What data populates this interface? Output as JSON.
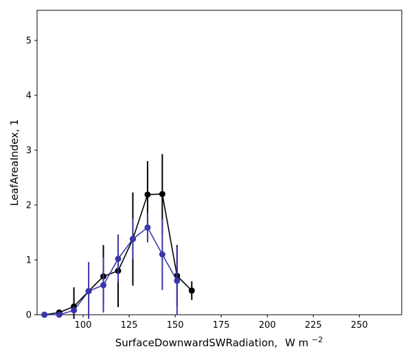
{
  "chart_data": {
    "type": "line",
    "xlabel": "SurfaceDownwardSWRadiation,",
    "xlabel_unit": "W m",
    "xlabel_unit_exp": "−2",
    "ylabel": "LeafAreaIndex,  1",
    "xlim": [
      75,
      273
    ],
    "ylim": [
      0,
      5.55
    ],
    "xticks": [
      100,
      125,
      150,
      175,
      200,
      225,
      250
    ],
    "yticks": [
      0,
      1,
      2,
      3,
      4,
      5
    ],
    "grid": false,
    "legend": "none",
    "series": [
      {
        "color": "#000000",
        "points": [
          {
            "x": 79,
            "y": 0.0,
            "err": 0.0
          },
          {
            "x": 87,
            "y": 0.04,
            "err": 0.03
          },
          {
            "x": 95,
            "y": 0.15,
            "err": 0.35
          },
          {
            "x": 103,
            "y": 0.43,
            "err": 0.0
          },
          {
            "x": 111,
            "y": 0.7,
            "err": 0.57
          },
          {
            "x": 119,
            "y": 0.8,
            "err": 0.66
          },
          {
            "x": 127,
            "y": 1.38,
            "err": 0.85
          },
          {
            "x": 135,
            "y": 2.19,
            "err": 0.61
          },
          {
            "x": 143,
            "y": 2.2,
            "err": 0.73
          },
          {
            "x": 151,
            "y": 0.71,
            "err": 0.56
          },
          {
            "x": 159,
            "y": 0.44,
            "err": 0.17
          }
        ]
      },
      {
        "color": "#3a36a8",
        "points": [
          {
            "x": 79,
            "y": 0.0,
            "err": 0.0
          },
          {
            "x": 87,
            "y": 0.0,
            "err": 0.0
          },
          {
            "x": 95,
            "y": 0.08,
            "err": 0.07
          },
          {
            "x": 103,
            "y": 0.43,
            "err": 0.53
          },
          {
            "x": 111,
            "y": 0.54,
            "err": 0.5
          },
          {
            "x": 119,
            "y": 1.02,
            "err": 0.43
          },
          {
            "x": 127,
            "y": 1.38,
            "err": 0.37
          },
          {
            "x": 135,
            "y": 1.59,
            "err": 0.27
          },
          {
            "x": 143,
            "y": 1.1,
            "err": 0.65
          },
          {
            "x": 151,
            "y": 0.62,
            "err": 0.62
          }
        ]
      }
    ]
  }
}
